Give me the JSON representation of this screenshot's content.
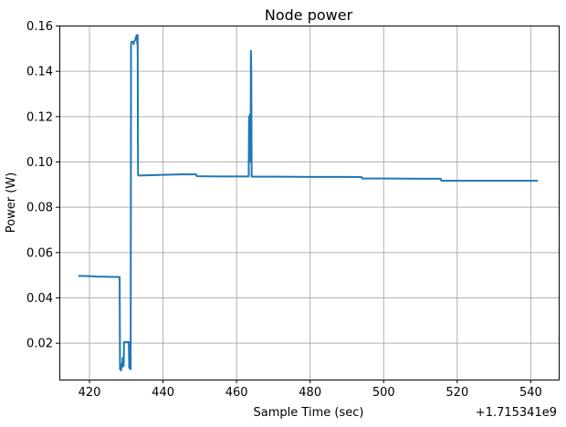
{
  "chart_data": {
    "type": "line",
    "title": "Node power",
    "xlabel": "Sample Time (sec)",
    "ylabel": "Power (W)",
    "x_offset_label": "+1.715341e9",
    "xlim": [
      411.8,
      547.6
    ],
    "ylim": [
      0.00395,
      0.1602
    ],
    "x_ticks": [
      420,
      440,
      460,
      480,
      500,
      520,
      540
    ],
    "x_tick_labels": [
      "420",
      "440",
      "460",
      "480",
      "500",
      "520",
      "540"
    ],
    "y_ticks": [
      0.02,
      0.04,
      0.06,
      0.08,
      0.1,
      0.12,
      0.14,
      0.16
    ],
    "y_tick_labels": [
      "0.02",
      "0.04",
      "0.06",
      "0.08",
      "0.10",
      "0.12",
      "0.14",
      "0.16"
    ],
    "grid": true,
    "series": [
      {
        "color": "#1f77b4",
        "x": [
          417.2,
          420.0,
          422.0,
          425.0,
          428.2,
          428.3,
          428.4,
          428.5,
          428.6,
          428.8,
          428.9,
          429.0,
          429.1,
          429.2,
          429.3,
          429.4,
          429.5,
          429.6,
          429.7,
          430.7,
          430.8,
          430.9,
          431.0,
          431.1,
          431.2,
          431.3,
          431.4,
          431.5,
          431.6,
          431.7,
          431.9,
          432.0,
          432.1,
          432.5,
          432.6,
          432.9,
          433.0,
          433.1,
          433.2,
          433.3,
          433.4,
          433.5,
          433.6,
          440.0,
          445.0,
          449.0,
          449.2,
          455.0,
          460.0,
          463.3,
          463.4,
          463.5,
          463.6,
          463.7,
          463.8,
          463.9,
          464.0,
          464.1,
          464.2,
          470.0,
          480.0,
          490.0,
          494.0,
          494.2,
          500.0,
          510.0,
          515.5,
          515.7,
          520.0,
          530.0,
          541.7
        ],
        "y": [
          0.0497,
          0.0496,
          0.0494,
          0.0493,
          0.0492,
          0.0085,
          0.009,
          0.01,
          0.008,
          0.011,
          0.0095,
          0.0135,
          0.012,
          0.013,
          0.01,
          0.0205,
          0.0205,
          0.0205,
          0.0205,
          0.0205,
          0.009,
          0.015,
          0.01,
          0.015,
          0.0085,
          0.152,
          0.153,
          0.153,
          0.153,
          0.153,
          0.153,
          0.152,
          0.153,
          0.154,
          0.155,
          0.156,
          0.152,
          0.156,
          0.0945,
          0.094,
          0.094,
          0.094,
          0.094,
          0.0943,
          0.0945,
          0.0945,
          0.0937,
          0.0936,
          0.0936,
          0.0936,
          0.12,
          0.11,
          0.121,
          0.115,
          0.1,
          0.149,
          0.14,
          0.0936,
          0.0935,
          0.0935,
          0.0934,
          0.0934,
          0.0933,
          0.0927,
          0.0927,
          0.0926,
          0.0926,
          0.0917,
          0.0917,
          0.0917,
          0.0917
        ]
      }
    ]
  }
}
